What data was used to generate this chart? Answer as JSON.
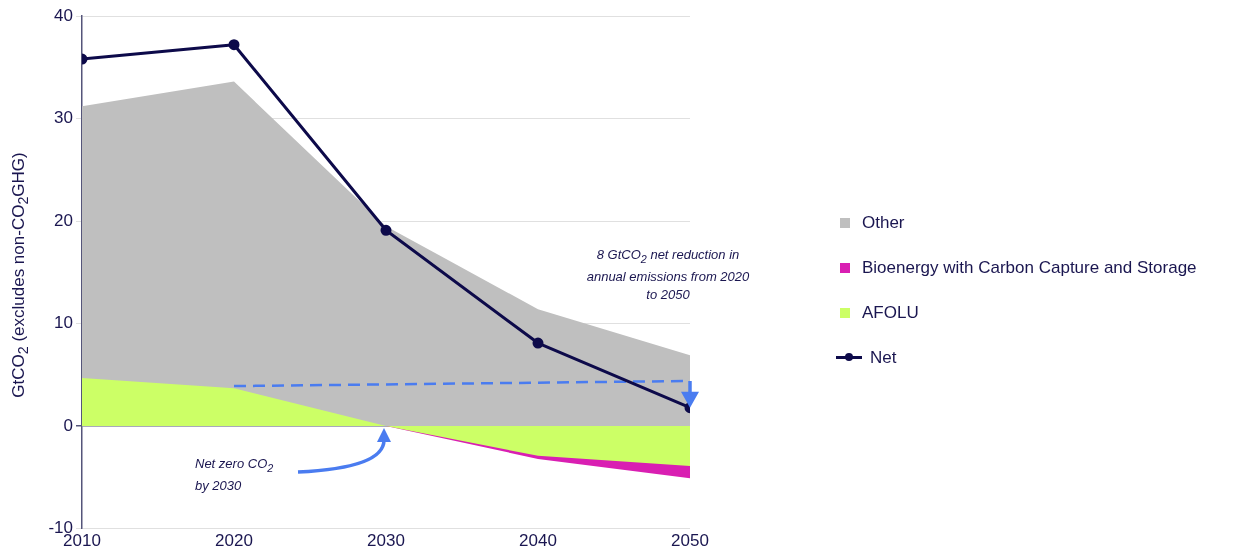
{
  "chart_data": {
    "type": "area",
    "ylabel": "GtCO$_{2}$ (excludes non-CO$_{2}$GHG)",
    "x": [
      2010,
      2020,
      2030,
      2040,
      2050
    ],
    "xlim": [
      2010,
      2050
    ],
    "xticks": [
      2010,
      2020,
      2030,
      2040,
      2050
    ],
    "ylim": [
      -10,
      40
    ],
    "yticks": [
      -10,
      0,
      10,
      20,
      30,
      40
    ],
    "series": [
      {
        "name": "Other",
        "color": "#bfbfbf",
        "values": [
          31.2,
          33.6,
          19.5,
          11.4,
          6.9
        ]
      },
      {
        "name": "Bioenergy with Carbon Capture and Storage",
        "color": "#d91fb2",
        "values": [
          0,
          0,
          0,
          -3.2,
          -5.1
        ]
      },
      {
        "name": "AFOLU",
        "color": "#ccff66",
        "values": [
          4.7,
          3.7,
          0,
          -2.9,
          -3.9
        ]
      },
      {
        "name": "Net",
        "type": "line",
        "color": "#0d0a4a",
        "marker": "circle",
        "values": [
          35.8,
          37.2,
          19.1,
          8.1,
          1.8
        ]
      },
      {
        "type": "line",
        "color": "#4a7cf0",
        "marker": "none",
        "line_style": "dashed",
        "x": [
          2020,
          2050
        ],
        "values": [
          3.9,
          4.4
        ]
      }
    ],
    "annotations": [
      "8 GtCO$_{2}$ net reduction in annual emissions from 2020 to 2050",
      "Net zero CO$_{2}$ by 2030"
    ],
    "grid": "y",
    "legend": "right"
  }
}
